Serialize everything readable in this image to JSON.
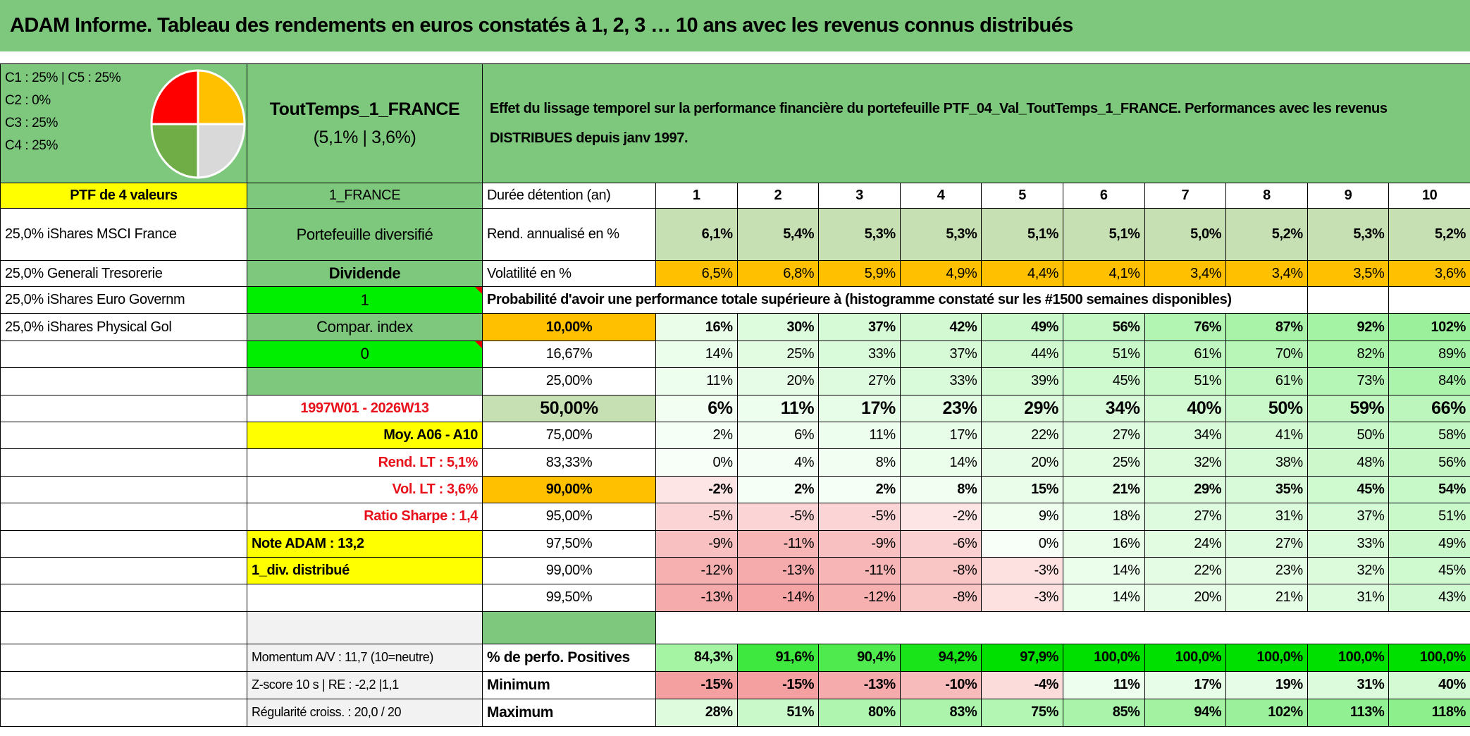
{
  "header": {
    "title": "ADAM Informe. Tableau des rendements en euros constatés à 1, 2, 3 … 10 ans avec les revenus connus distribués"
  },
  "allocation": {
    "legend": [
      "C1 : 25% | C5 : 25%",
      "C2 : 0%",
      "C3 : 25%",
      "C4 : 25%"
    ],
    "pie": [
      {
        "name": "C1",
        "value": 25,
        "color": "#ffc000"
      },
      {
        "name": "C5",
        "value": 25,
        "color": "#d9d9d9"
      },
      {
        "name": "C4",
        "value": 25,
        "color": "#70ad47"
      },
      {
        "name": "C3",
        "value": 25,
        "color": "#ff0000"
      }
    ],
    "ptf_label": "PTF de 4 valeurs",
    "holdings": [
      "25,0% iShares MSCI France",
      "25,0% Generali Tresorerie",
      "25,0% iShares Euro Governm",
      "25,0% iShares Physical Gol"
    ]
  },
  "portfolio": {
    "name": "ToutTemps_1_FRANCE",
    "summary": "(5,1% | 3,6%)",
    "code": "1_FRANCE",
    "type": "Portefeuille diversifié",
    "income": "Dividende",
    "flag_1": "1",
    "compare_label": "Compar. index",
    "flag_0": "0",
    "side_rows": [
      "1997W01 - 2026W13",
      "Moy. A06 - A10",
      "Rend. LT : 5,1%",
      "Vol. LT : 3,6%",
      "Ratio Sharpe : 1,4",
      "Note ADAM : 13,2",
      "1_div. distribué",
      ""
    ],
    "metrics": [
      "Momentum A/V : 11,7 (10=neutre)",
      "Z-score 10 s | RE : -2,2 |1,1",
      "Régularité croiss. : 20,0 / 20"
    ]
  },
  "description": "Effet du lissage temporel sur la performance financière du portefeuille PTF_04_Val_ToutTemps_1_FRANCE. Performances avec les revenus DISTRIBUES depuis janv 1997.",
  "table": {
    "duration_label": "Durée détention (an)",
    "durations": [
      "1",
      "2",
      "3",
      "4",
      "5",
      "6",
      "7",
      "8",
      "9",
      "10"
    ],
    "return_label": "Rend. annualisé en %",
    "returns": [
      "6,1%",
      "5,4%",
      "5,3%",
      "5,3%",
      "5,1%",
      "5,1%",
      "5,0%",
      "5,2%",
      "5,3%",
      "5,2%"
    ],
    "vol_label": "Volatilité en %",
    "volatility": [
      "6,5%",
      "6,8%",
      "5,9%",
      "4,9%",
      "4,4%",
      "4,1%",
      "3,4%",
      "3,4%",
      "3,5%",
      "3,6%"
    ],
    "prob_title": "Probabilité d'avoir une performance totale supérieure à (histogramme constaté sur les #1500 semaines disponibles)",
    "quantiles": [
      {
        "label": "10,00%",
        "values": [
          "16%",
          "30%",
          "37%",
          "42%",
          "49%",
          "56%",
          "76%",
          "87%",
          "92%",
          "102%"
        ]
      },
      {
        "label": "16,67%",
        "values": [
          "14%",
          "25%",
          "33%",
          "37%",
          "44%",
          "51%",
          "61%",
          "70%",
          "82%",
          "89%"
        ]
      },
      {
        "label": "25,00%",
        "values": [
          "11%",
          "20%",
          "27%",
          "33%",
          "39%",
          "45%",
          "51%",
          "61%",
          "73%",
          "84%"
        ]
      },
      {
        "label": "50,00%",
        "values": [
          "6%",
          "11%",
          "17%",
          "23%",
          "29%",
          "34%",
          "40%",
          "50%",
          "59%",
          "66%"
        ]
      },
      {
        "label": "75,00%",
        "values": [
          "2%",
          "6%",
          "11%",
          "17%",
          "22%",
          "27%",
          "34%",
          "41%",
          "50%",
          "58%"
        ]
      },
      {
        "label": "83,33%",
        "values": [
          "0%",
          "4%",
          "8%",
          "14%",
          "20%",
          "25%",
          "32%",
          "38%",
          "48%",
          "56%"
        ]
      },
      {
        "label": "90,00%",
        "values": [
          "-2%",
          "2%",
          "2%",
          "8%",
          "15%",
          "21%",
          "29%",
          "35%",
          "45%",
          "54%"
        ]
      },
      {
        "label": "95,00%",
        "values": [
          "-5%",
          "-5%",
          "-5%",
          "-2%",
          "9%",
          "18%",
          "27%",
          "31%",
          "37%",
          "51%"
        ]
      },
      {
        "label": "97,50%",
        "values": [
          "-9%",
          "-11%",
          "-9%",
          "-6%",
          "0%",
          "16%",
          "24%",
          "27%",
          "33%",
          "49%"
        ]
      },
      {
        "label": "99,00%",
        "values": [
          "-12%",
          "-13%",
          "-11%",
          "-8%",
          "-3%",
          "14%",
          "22%",
          "23%",
          "32%",
          "45%"
        ]
      },
      {
        "label": "99,50%",
        "values": [
          "-13%",
          "-14%",
          "-12%",
          "-8%",
          "-3%",
          "14%",
          "20%",
          "21%",
          "31%",
          "43%"
        ]
      }
    ],
    "positive_label": "% de perfo. Positives",
    "positive": [
      "84,3%",
      "91,6%",
      "90,4%",
      "94,2%",
      "97,9%",
      "100,0%",
      "100,0%",
      "100,0%",
      "100,0%",
      "100,0%"
    ],
    "min_label": "Minimum",
    "minimum": [
      "-15%",
      "-15%",
      "-13%",
      "-10%",
      "-4%",
      "11%",
      "17%",
      "19%",
      "31%",
      "40%"
    ],
    "max_label": "Maximum",
    "maximum": [
      "28%",
      "51%",
      "80%",
      "83%",
      "75%",
      "85%",
      "94%",
      "102%",
      "113%",
      "118%"
    ]
  }
}
